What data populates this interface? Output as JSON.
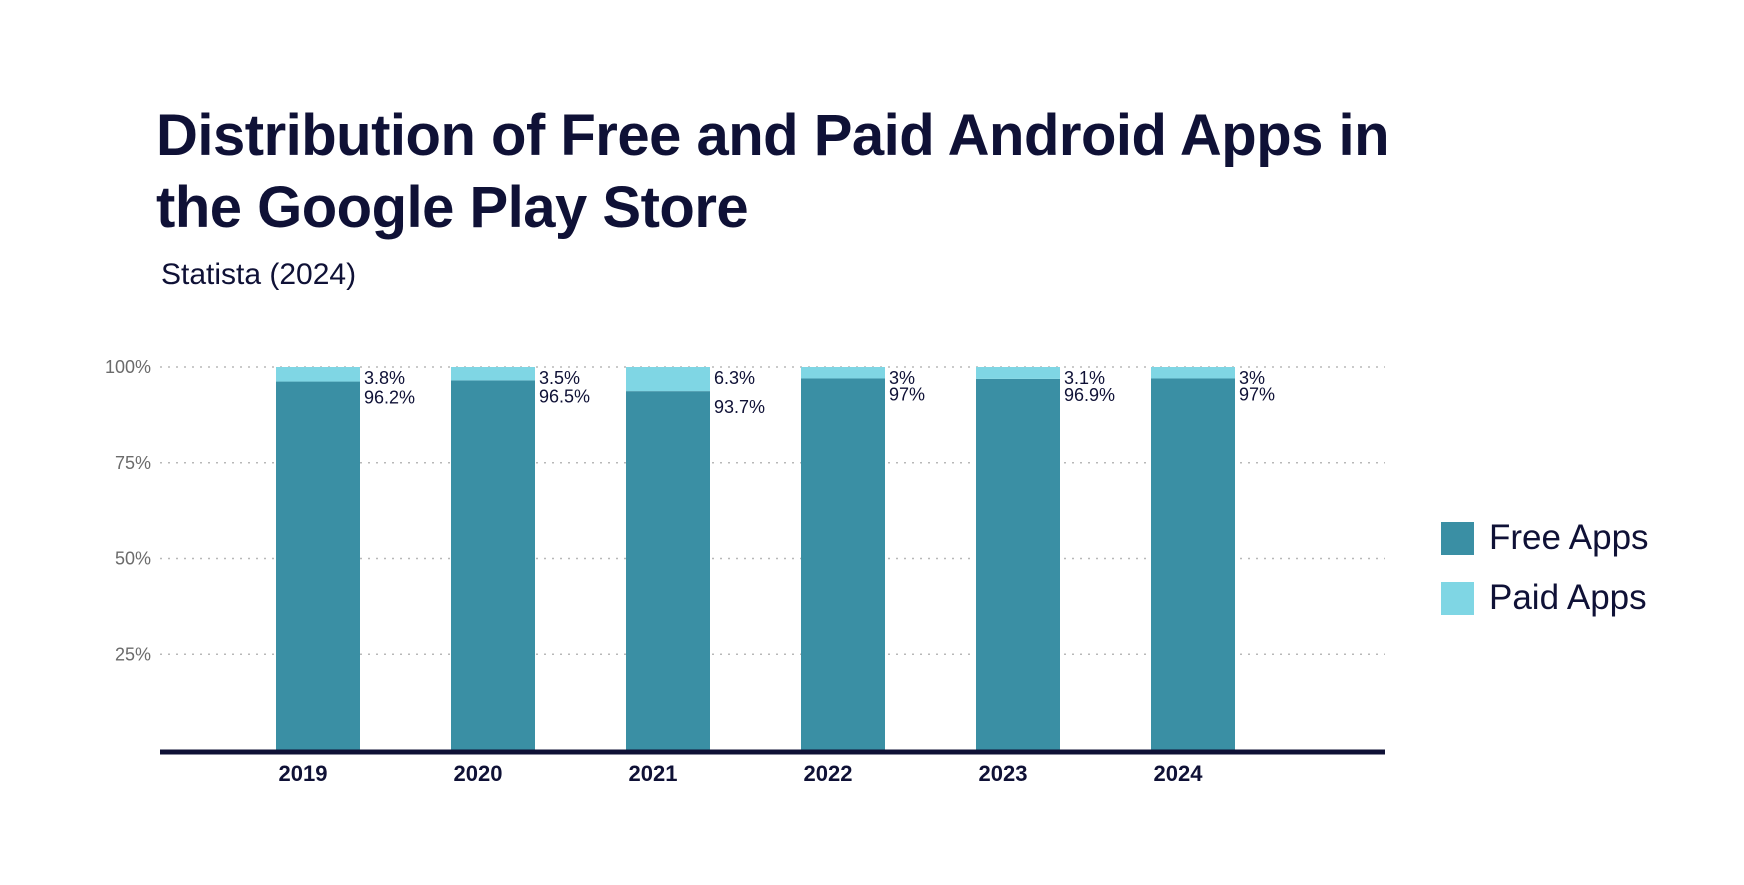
{
  "title": "Distribution of Free and Paid Android Apps in the Google Play Store",
  "subtitle": "Statista (2024)",
  "colors": {
    "free": "#3a8fa4",
    "paid": "#7fd6e4",
    "axis": "#0f1136",
    "grid": "#b8b8b8",
    "text": "#0f1136"
  },
  "legend": [
    {
      "label": "Free Apps",
      "color": "#3a8fa4"
    },
    {
      "label": "Paid Apps",
      "color": "#7fd6e4"
    }
  ],
  "chart_data": {
    "type": "bar",
    "stacked": true,
    "title": "Distribution of Free and Paid Android Apps in the Google Play Store",
    "subtitle": "Statista (2024)",
    "categories": [
      "2019",
      "2020",
      "2021",
      "2022",
      "2023",
      "2024"
    ],
    "series": [
      {
        "name": "Free Apps",
        "values": [
          96.2,
          96.5,
          93.7,
          97,
          96.9,
          97
        ],
        "labels": [
          "96.2%",
          "96.5%",
          "93.7%",
          "97%",
          "96.9%",
          "97%"
        ]
      },
      {
        "name": "Paid Apps",
        "values": [
          3.8,
          3.5,
          6.3,
          3,
          3.1,
          3
        ],
        "labels": [
          "3.8%",
          "3.5%",
          "6.3%",
          "3%",
          "3.1%",
          "3%"
        ]
      }
    ],
    "ylim": [
      0,
      100
    ],
    "yticks": [
      "25%",
      "50%",
      "75%",
      "100%"
    ],
    "ytick_values": [
      25,
      50,
      75,
      100
    ],
    "grid": true,
    "legend_position": "right"
  }
}
